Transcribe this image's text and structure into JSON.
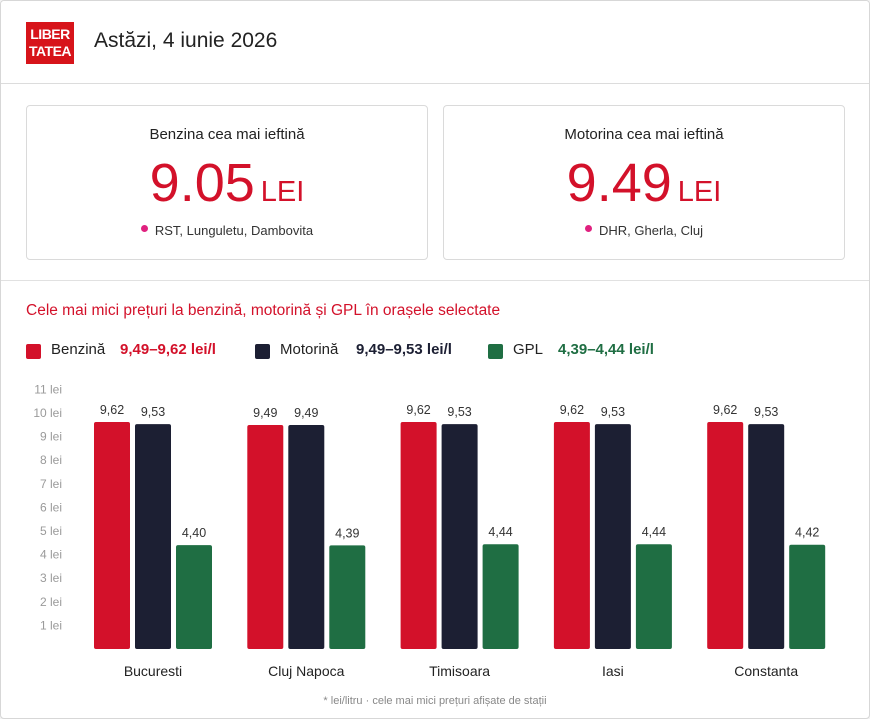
{
  "header": {
    "logo_line1": "LIBER",
    "logo_line2": "TATEA",
    "date": "Astăzi, 4 iunie 2026"
  },
  "cards": [
    {
      "title": "Benzina cea mai ieftină",
      "price": "9.05",
      "unit": "LEI",
      "location": "RST, Lunguletu, Dambovita"
    },
    {
      "title": "Motorina cea mai ieftină",
      "price": "9.49",
      "unit": "LEI",
      "location": "DHR, Gherla, Cluj"
    }
  ],
  "chart_title": "Cele mai mici prețuri la benzină, motorină și GPL în orașele selectate",
  "legend": [
    {
      "label": "Benzină",
      "range": "9,49–9,62 lei/l",
      "color": "#d3112a",
      "range_color": "#d3112a"
    },
    {
      "label": "Motorină",
      "range": "9,49–9,53 lei/l",
      "color": "#1c1f33",
      "range_color": "#1c1f33"
    },
    {
      "label": "GPL",
      "range": "4,39–4,44 lei/l",
      "color": "#1f6e43",
      "range_color": "#1f6e43"
    }
  ],
  "chart_data": {
    "type": "bar",
    "categories": [
      "Bucuresti",
      "Cluj Napoca",
      "Timisoara",
      "Iasi",
      "Constanta"
    ],
    "series": [
      {
        "name": "Benzină",
        "values": [
          9.62,
          9.49,
          9.62,
          9.62,
          9.62
        ],
        "labels": [
          "9,62",
          "9,49",
          "9,62",
          "9,62",
          "9,62"
        ],
        "color": "#d3112a"
      },
      {
        "name": "Motorină",
        "values": [
          9.53,
          9.49,
          9.53,
          9.53,
          9.53
        ],
        "labels": [
          "9,53",
          "9,49",
          "9,53",
          "9,53",
          "9,53"
        ],
        "color": "#1c1f33"
      },
      {
        "name": "GPL",
        "values": [
          4.4,
          4.39,
          4.44,
          4.44,
          4.42
        ],
        "labels": [
          "4,40",
          "4,39",
          "4,44",
          "4,44",
          "4,42"
        ],
        "color": "#1f6e43"
      }
    ],
    "yticks": [
      1,
      2,
      3,
      4,
      5,
      6,
      7,
      8,
      9,
      10,
      11
    ],
    "ytick_labels": [
      "1 lei",
      "2 lei",
      "3 lei",
      "4 lei",
      "5 lei",
      "6 lei",
      "7 lei",
      "8 lei",
      "9 lei",
      "10 lei",
      "11 lei"
    ],
    "ylim": [
      0,
      11
    ],
    "grid": false,
    "legend_position": "top-left"
  },
  "footnote": "* lei/litru · cele mai mici prețuri afișate de stații"
}
